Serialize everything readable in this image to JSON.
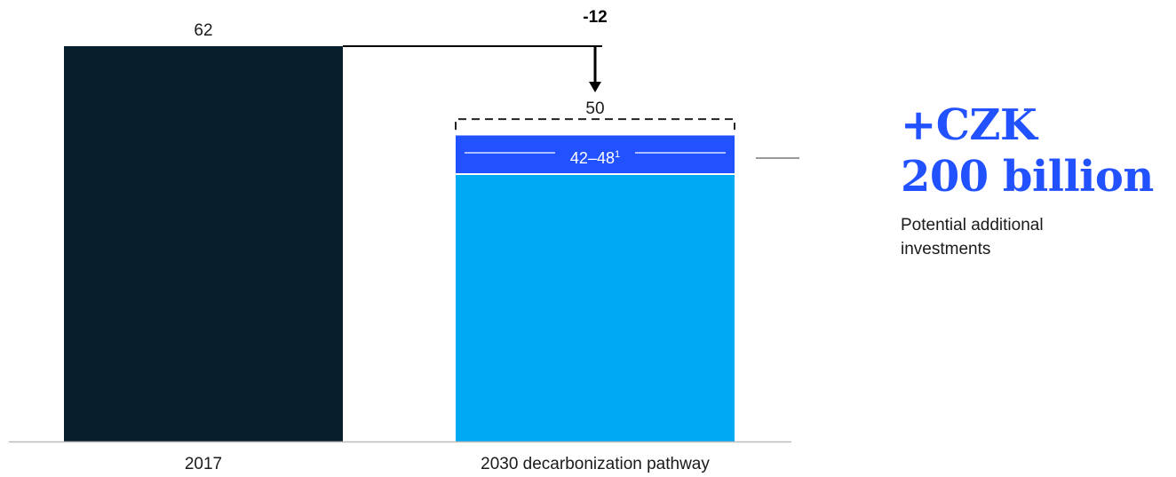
{
  "chart_data": {
    "type": "bar",
    "categories": [
      "2017",
      "2030 decarbonization pathway"
    ],
    "values": [
      62,
      50
    ],
    "value_labels": [
      "62",
      "50"
    ],
    "delta": {
      "value": -12,
      "label": "-12"
    },
    "range": {
      "low": 42,
      "high": 48,
      "label": "42–48",
      "footnote": "1"
    },
    "ylim": [
      0,
      62
    ],
    "grid": false,
    "legend": "none"
  },
  "colors": {
    "bar_2017": "#071e2c",
    "bar_2030_base": "#00a9f4",
    "range_band": "#2251ff",
    "accent": "#2251ff",
    "axis": "#bbbbbb",
    "connector": "#999999"
  },
  "callout": {
    "headline_line1": "+CZK",
    "headline_line2": "200 billion",
    "subtext": "Potential additional investments"
  }
}
